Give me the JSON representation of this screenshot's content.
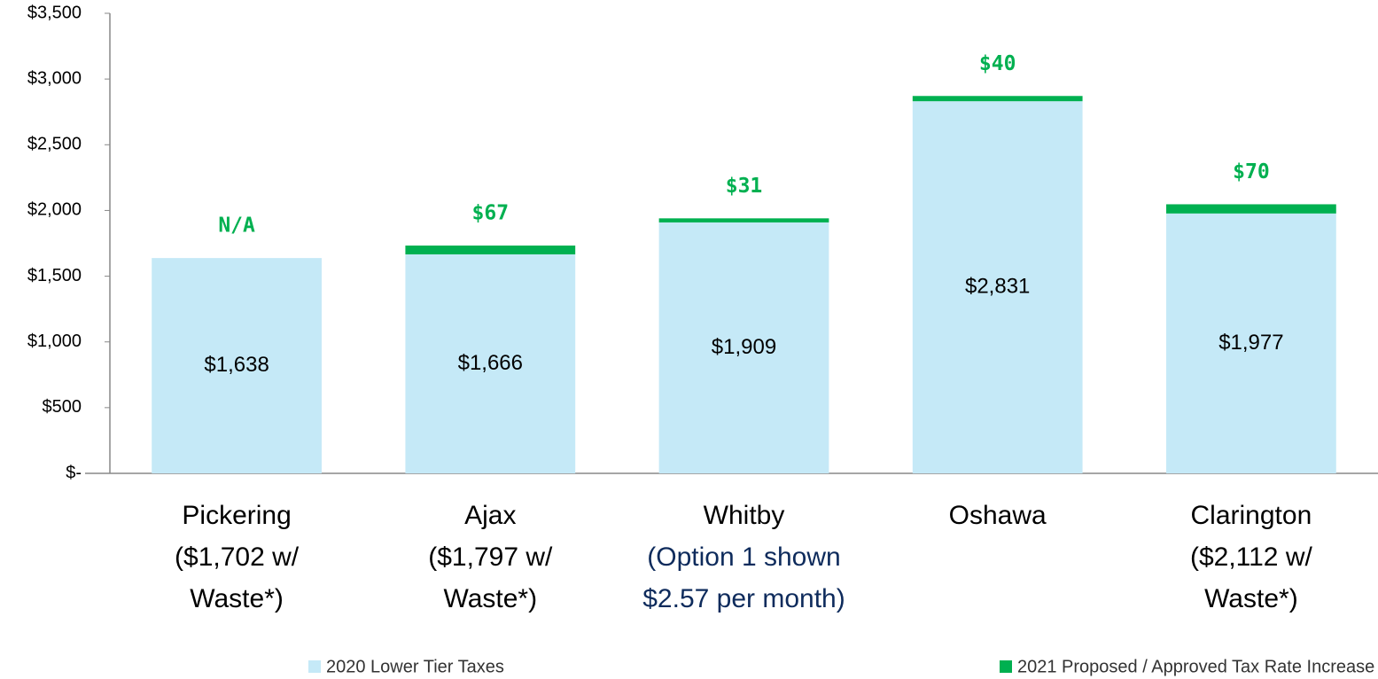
{
  "chart_data": {
    "type": "stacked_bar",
    "categories": [
      [
        "Pickering",
        "($1,702 w/",
        "Waste*)"
      ],
      [
        "Ajax",
        "($1,797 w/",
        "Waste*)"
      ],
      [
        "Whitby"
      ],
      [
        "Oshawa"
      ],
      [
        "Clarington",
        "($2,112 w/",
        "Waste*)"
      ]
    ],
    "category_notes": [
      null,
      null,
      [
        "(Option 1 shown",
        "$2.57 per month)"
      ],
      null,
      null
    ],
    "series": [
      {
        "name": "2020 Lower Tier Taxes",
        "color": "#c5e9f7",
        "values": [
          1638,
          1666,
          1909,
          2831,
          1977
        ],
        "value_labels": [
          "$1,638",
          "$1,666",
          "$1,909",
          "$2,831",
          "$1,977"
        ]
      },
      {
        "name": "2021 Proposed / Approved Tax Rate Increase",
        "color": "#00b050",
        "values": [
          null,
          67,
          31,
          40,
          70
        ],
        "value_labels": [
          "N/A",
          "$67",
          "$31",
          "$40",
          "$70"
        ]
      }
    ],
    "ylim": [
      0,
      3500
    ],
    "yticks": [
      {
        "value": 0,
        "label": "$-"
      },
      {
        "value": 500,
        "label": "$500"
      },
      {
        "value": 1000,
        "label": "$1,000"
      },
      {
        "value": 1500,
        "label": "$1,500"
      },
      {
        "value": 2000,
        "label": "$2,000"
      },
      {
        "value": 2500,
        "label": "$2,500"
      },
      {
        "value": 3000,
        "label": "$3,000"
      },
      {
        "value": 3500,
        "label": "$3,500"
      }
    ],
    "grid": false,
    "legend": "bottom"
  }
}
